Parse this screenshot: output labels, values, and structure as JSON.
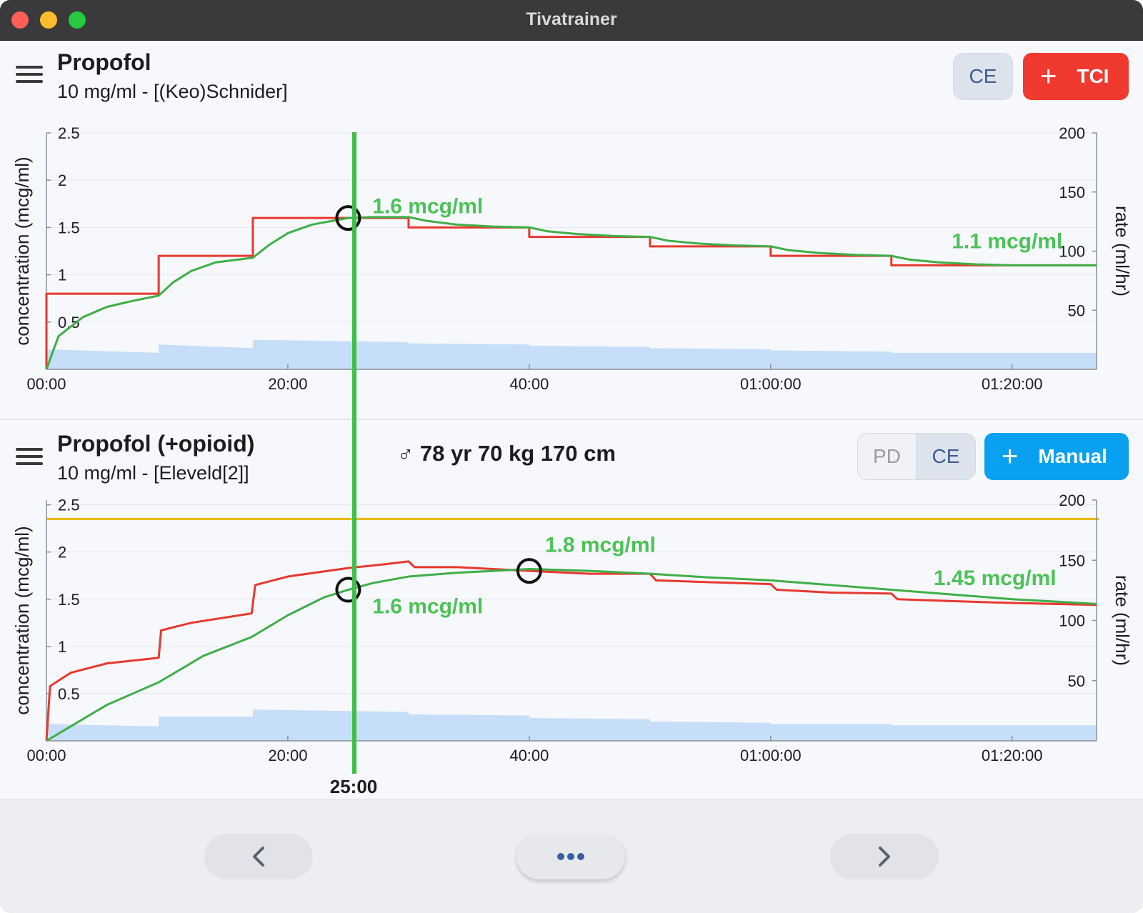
{
  "window": {
    "title": "Tivatrainer"
  },
  "colors": {
    "cp": "#e8382f",
    "ce": "#3fae48",
    "rate": "#c6def7",
    "cursor": "#3fbe48",
    "threshold": "#e6b800",
    "tci_button": "#f03a2f",
    "manual_button": "#0aa0f0"
  },
  "cursor": {
    "time_label": "25:00",
    "t_min": 25
  },
  "patient": {
    "info": "♂ 78 yr 70 kg 170 cm"
  },
  "panels": [
    {
      "title": "Propofol",
      "subtitle": "10 mg/ml - [(Keo)Schnider]",
      "menu_icon": "hamburger-menu-icon",
      "segment": [
        {
          "label": "CE",
          "active": true
        }
      ],
      "action": {
        "label": "TCI",
        "icon": "plus-icon"
      }
    },
    {
      "title": "Propofol (+opioid)",
      "subtitle": "10 mg/ml - [Eleveld[2]]",
      "menu_icon": "hamburger-menu-icon",
      "segment": [
        {
          "label": "PD",
          "active": false
        },
        {
          "label": "CE",
          "active": true
        }
      ],
      "action": {
        "label": "Manual",
        "icon": "plus-icon"
      }
    }
  ],
  "chart_data": [
    {
      "type": "line",
      "ylabel": "concentration (mcg/ml)",
      "y2label": "rate (ml/hr)",
      "xlim": [
        0,
        87
      ],
      "ylim": [
        0,
        2.5
      ],
      "y2lim": [
        0,
        200
      ],
      "x_ticks": [
        0,
        20,
        40,
        60,
        80
      ],
      "x_tick_labels": [
        "00:00",
        "20:00",
        "40:00",
        "01:00:00",
        "01:20:00"
      ],
      "y_ticks": [
        0.5,
        1,
        1.5,
        2,
        2.5
      ],
      "y_tick_labels": [
        "0.5",
        "1",
        "1.5",
        "2",
        "2.5"
      ],
      "y2_ticks": [
        50,
        100,
        150,
        200
      ],
      "y2_tick_labels": [
        "50",
        "100",
        "150",
        "200"
      ],
      "grid": true,
      "series": [
        {
          "role": "plasma target",
          "color": "#e8382f",
          "x": [
            0,
            0,
            9.3,
            9.3,
            17.1,
            17.1,
            30,
            30,
            40,
            40,
            50,
            50,
            60,
            60,
            70,
            70,
            87
          ],
          "y": [
            0,
            0.8,
            0.8,
            1.2,
            1.2,
            1.6,
            1.6,
            1.5,
            1.5,
            1.4,
            1.4,
            1.3,
            1.3,
            1.2,
            1.2,
            1.1,
            1.1
          ]
        },
        {
          "role": "effect site",
          "color": "#3fae48",
          "x": [
            0,
            1,
            3,
            5,
            7,
            9.3,
            10.5,
            12,
            14,
            17.1,
            18.5,
            20,
            22,
            25,
            27,
            30,
            31.5,
            34,
            37,
            40,
            41.5,
            44,
            47,
            50,
            51.5,
            54,
            57,
            60,
            61.5,
            64,
            67,
            70,
            71.5,
            74,
            77,
            80,
            87
          ],
          "y": [
            0,
            0.35,
            0.55,
            0.66,
            0.72,
            0.78,
            0.92,
            1.04,
            1.13,
            1.18,
            1.32,
            1.44,
            1.53,
            1.6,
            1.61,
            1.61,
            1.57,
            1.53,
            1.51,
            1.5,
            1.46,
            1.43,
            1.41,
            1.4,
            1.36,
            1.33,
            1.31,
            1.3,
            1.26,
            1.23,
            1.21,
            1.2,
            1.16,
            1.13,
            1.11,
            1.1,
            1.1
          ]
        },
        {
          "role": "infusion rate",
          "color": "#c6def7",
          "axis": "y2",
          "x": [
            0,
            0,
            9.3,
            9.3,
            17.1,
            17.1,
            30,
            30,
            40,
            40,
            50,
            50,
            60,
            60,
            70,
            70,
            87
          ],
          "y": [
            0,
            17,
            14,
            21,
            18,
            25,
            23,
            22,
            21,
            20,
            19,
            18,
            17,
            16,
            15,
            14,
            14
          ]
        }
      ],
      "markers": [
        {
          "x": 25,
          "y": 1.6
        }
      ],
      "annotations": [
        {
          "text": "1.6 mcg/ml",
          "x": 27,
          "y": 1.65
        },
        {
          "text": "1.1 mcg/ml",
          "x": 75,
          "y": 1.28
        }
      ]
    },
    {
      "type": "line",
      "ylabel": "concentration (mcg/ml)",
      "y2label": "rate (ml/hr)",
      "xlim": [
        0,
        87
      ],
      "ylim": [
        0,
        2.55
      ],
      "y2lim": [
        0,
        200
      ],
      "x_ticks": [
        0,
        20,
        40,
        60,
        80
      ],
      "x_tick_labels": [
        "00:00",
        "20:00",
        "40:00",
        "01:00:00",
        "01:20:00"
      ],
      "y_ticks": [
        0.5,
        1,
        1.5,
        2,
        2.5
      ],
      "y_tick_labels": [
        "0.5",
        "1",
        "1.5",
        "2",
        "2.5"
      ],
      "y2_ticks": [
        50,
        100,
        150,
        200
      ],
      "y2_tick_labels": [
        "50",
        "100",
        "150",
        "200"
      ],
      "grid": true,
      "threshold": 2.35,
      "series": [
        {
          "role": "plasma",
          "color": "#e8382f",
          "x": [
            0,
            0.3,
            2,
            5,
            9.3,
            9.5,
            12,
            17,
            17.3,
            20,
            25,
            28,
            30,
            30.5,
            34,
            40,
            45,
            50,
            50.5,
            55,
            60,
            60.5,
            65,
            70,
            70.5,
            75,
            80,
            87
          ],
          "y": [
            0,
            0.58,
            0.72,
            0.82,
            0.88,
            1.17,
            1.25,
            1.35,
            1.65,
            1.74,
            1.83,
            1.87,
            1.9,
            1.84,
            1.84,
            1.8,
            1.77,
            1.77,
            1.7,
            1.68,
            1.66,
            1.6,
            1.57,
            1.56,
            1.5,
            1.48,
            1.46,
            1.44
          ]
        },
        {
          "role": "effect site",
          "color": "#3fae48",
          "x": [
            0,
            5,
            9.3,
            13,
            17,
            20,
            23,
            25,
            27,
            30,
            34,
            40,
            45,
            50,
            55,
            60,
            65,
            70,
            75,
            80,
            87
          ],
          "y": [
            0,
            0.38,
            0.62,
            0.9,
            1.1,
            1.33,
            1.52,
            1.6,
            1.67,
            1.74,
            1.78,
            1.82,
            1.8,
            1.77,
            1.73,
            1.7,
            1.65,
            1.6,
            1.55,
            1.5,
            1.45
          ]
        },
        {
          "role": "infusion rate",
          "color": "#c6def7",
          "axis": "y2",
          "x": [
            0,
            0,
            9.3,
            9.3,
            17.1,
            17.1,
            30,
            30,
            40,
            40,
            50,
            50,
            60,
            60,
            70,
            70,
            87
          ],
          "y": [
            0,
            14,
            12,
            20,
            20,
            26,
            24,
            22,
            21,
            19,
            18,
            16,
            15,
            14,
            14,
            13,
            13
          ]
        }
      ],
      "markers": [
        {
          "x": 25,
          "y": 1.6
        },
        {
          "x": 40,
          "y": 1.8
        }
      ],
      "annotations": [
        {
          "text": "1.6 mcg/ml",
          "x": 27,
          "y": 1.35
        },
        {
          "text": "1.8 mcg/ml",
          "x": 41.3,
          "y": 2.0
        },
        {
          "text": "1.45 mcg/ml",
          "x": 73.5,
          "y": 1.65
        }
      ]
    }
  ],
  "bottom_nav": {
    "prev_icon": "chevron-left-icon",
    "more_icon": "ellipsis-icon",
    "next_icon": "chevron-right-icon"
  }
}
